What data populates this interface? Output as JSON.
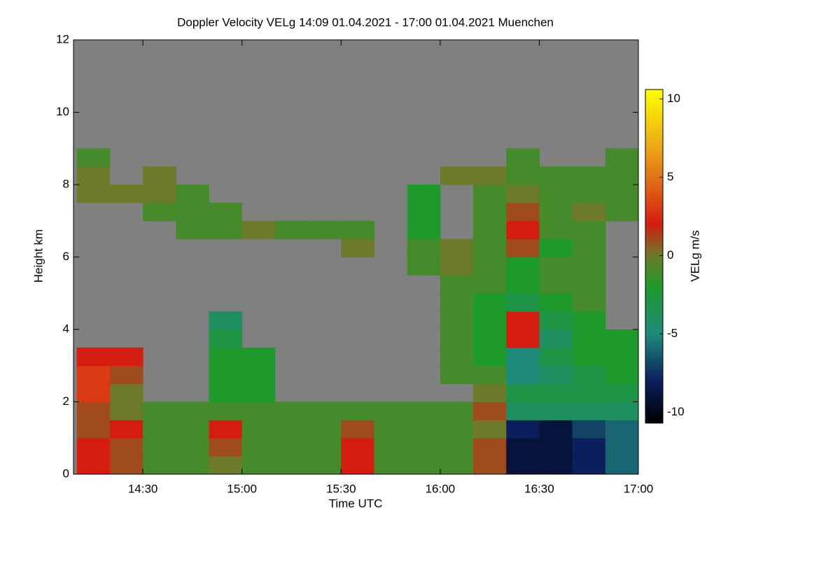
{
  "chart_data": {
    "type": "heatmap",
    "title": "Doppler Velocity VELg   14:09 01.04.2021 - 17:00 01.04.2021 Muenchen",
    "x_label": "Time UTC",
    "y_label": "Height km",
    "colorbar_label": "VELg m/s",
    "xlim": [
      849,
      1020
    ],
    "xticks": [
      {
        "value": 870,
        "label": "14:30"
      },
      {
        "value": 900,
        "label": "15:00"
      },
      {
        "value": 930,
        "label": "15:30"
      },
      {
        "value": 960,
        "label": "16:00"
      },
      {
        "value": 990,
        "label": "16:30"
      },
      {
        "value": 1020,
        "label": "17:00"
      }
    ],
    "ylim": [
      0,
      12
    ],
    "yticks": [
      0,
      2,
      4,
      6,
      8,
      10,
      12
    ],
    "zlim": [
      -10.7,
      10.6
    ],
    "zticks": [
      -10,
      -5,
      0,
      5,
      10
    ],
    "background_color": "#808080",
    "colorscale": [
      [
        -10.7,
        "#000000"
      ],
      [
        -8,
        "#0b1f5e"
      ],
      [
        -5,
        "#1e8a7a"
      ],
      [
        -2,
        "#1e9a2c"
      ],
      [
        0,
        "#6c7a2a"
      ],
      [
        2,
        "#d41c10"
      ],
      [
        6,
        "#e8901a"
      ],
      [
        10.6,
        "#ffff00"
      ]
    ],
    "xbins": [
      850,
      860,
      870,
      880,
      890,
      900,
      910,
      920,
      930,
      940,
      950,
      960,
      970,
      980,
      990,
      1000,
      1010,
      1020
    ],
    "ybins": [
      0,
      0.5,
      1,
      1.5,
      2,
      2.5,
      3,
      3.5,
      4,
      4.5,
      5,
      5.5,
      6,
      6.5,
      7,
      7.5,
      8,
      8.5,
      9,
      9.5,
      10,
      10.5,
      11,
      11.5,
      12
    ],
    "z": [
      [
        2,
        1,
        -1,
        -1,
        0,
        -1,
        -1,
        -1,
        2,
        -1,
        -1,
        -1,
        1,
        -9,
        -9,
        -8,
        -6
      ],
      [
        2,
        1,
        -1,
        -1,
        1,
        -1,
        -1,
        -1,
        2,
        -1,
        -1,
        -1,
        1,
        -9,
        -9,
        -8,
        -6
      ],
      [
        1,
        2,
        -1,
        -1,
        2,
        -1,
        -1,
        -1,
        1,
        -1,
        -1,
        -1,
        0,
        -8,
        -9,
        -7,
        -6
      ],
      [
        1,
        0,
        -1,
        -1,
        -1,
        -1,
        -1,
        -1,
        -1,
        -1,
        -1,
        -1,
        1,
        -4,
        -4,
        -4,
        -4
      ],
      [
        3,
        0,
        null,
        null,
        -2,
        -2,
        null,
        null,
        null,
        null,
        null,
        null,
        0,
        -3,
        -3,
        -3,
        -3
      ],
      [
        3,
        1,
        null,
        null,
        -2,
        -2,
        null,
        null,
        null,
        null,
        null,
        -1,
        -1,
        -5,
        -4,
        -3,
        -2
      ],
      [
        2,
        2,
        null,
        null,
        -2,
        -2,
        null,
        null,
        null,
        null,
        null,
        -1,
        -2,
        -5,
        -3,
        -2,
        -2
      ],
      [
        null,
        null,
        null,
        null,
        -3,
        null,
        null,
        null,
        null,
        null,
        null,
        -1,
        -2,
        2,
        -4,
        -2,
        -2
      ],
      [
        null,
        null,
        null,
        null,
        -4,
        null,
        null,
        null,
        null,
        null,
        null,
        -1,
        -2,
        2,
        -3,
        -2,
        null
      ],
      [
        null,
        null,
        null,
        null,
        null,
        null,
        null,
        null,
        null,
        null,
        null,
        -1,
        -2,
        -3,
        -2,
        -1,
        null
      ],
      [
        null,
        null,
        null,
        null,
        null,
        null,
        null,
        null,
        null,
        null,
        null,
        -1,
        -1,
        -2,
        -1,
        -1,
        null
      ],
      [
        null,
        null,
        null,
        null,
        null,
        null,
        null,
        null,
        null,
        null,
        -1,
        0,
        -1,
        -2,
        -1,
        -1,
        null
      ],
      [
        null,
        null,
        null,
        null,
        null,
        null,
        null,
        null,
        0,
        null,
        -1,
        0,
        -1,
        1,
        -2,
        -1,
        null
      ],
      [
        null,
        null,
        null,
        -1,
        -1,
        0,
        -1,
        -1,
        -1,
        null,
        -2,
        null,
        -1,
        2,
        -1,
        -1,
        null
      ],
      [
        null,
        null,
        -1,
        -1,
        -1,
        null,
        null,
        null,
        null,
        null,
        -2,
        null,
        -1,
        1,
        -1,
        0,
        -1
      ],
      [
        0,
        0,
        0,
        -1,
        null,
        null,
        null,
        null,
        null,
        null,
        -2,
        null,
        -1,
        0,
        -1,
        -1,
        -1
      ],
      [
        0,
        null,
        0,
        null,
        null,
        null,
        null,
        null,
        null,
        null,
        null,
        0,
        0,
        -1,
        -1,
        -1,
        -1
      ],
      [
        -1,
        null,
        null,
        null,
        null,
        null,
        null,
        null,
        null,
        null,
        null,
        null,
        null,
        -1,
        null,
        null,
        -1
      ],
      [
        null,
        null,
        null,
        null,
        null,
        null,
        null,
        null,
        null,
        null,
        null,
        null,
        null,
        null,
        null,
        null,
        null
      ],
      [
        null,
        null,
        null,
        null,
        null,
        null,
        null,
        null,
        null,
        null,
        null,
        null,
        null,
        null,
        null,
        null,
        null
      ],
      [
        null,
        null,
        null,
        null,
        null,
        null,
        null,
        null,
        null,
        null,
        null,
        null,
        null,
        null,
        null,
        null,
        null
      ],
      [
        null,
        null,
        null,
        null,
        null,
        null,
        null,
        null,
        null,
        null,
        null,
        null,
        null,
        null,
        null,
        null,
        null
      ],
      [
        null,
        null,
        null,
        null,
        null,
        null,
        null,
        null,
        null,
        null,
        null,
        null,
        null,
        null,
        null,
        null,
        null
      ],
      [
        null,
        null,
        null,
        null,
        null,
        null,
        null,
        null,
        null,
        null,
        null,
        null,
        null,
        null,
        null,
        null,
        null
      ]
    ]
  }
}
